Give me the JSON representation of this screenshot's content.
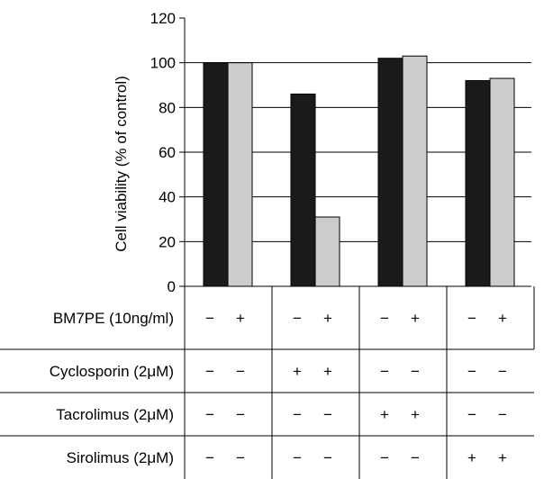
{
  "chart_data": {
    "type": "bar",
    "ylabel": "Cell viability (% of control)",
    "ylim": [
      0,
      120
    ],
    "yticks": [
      0,
      20,
      40,
      60,
      80,
      100,
      120
    ],
    "grid": true,
    "series_colors": [
      "#1a1a1a",
      "#cccccc"
    ],
    "groups": [
      {
        "bars": [
          100,
          100
        ]
      },
      {
        "bars": [
          86,
          31
        ]
      },
      {
        "bars": [
          102,
          103
        ]
      },
      {
        "bars": [
          92,
          93
        ]
      }
    ],
    "treatment_rows": [
      {
        "label": "BM7PE (10ng/ml)",
        "signs": [
          [
            "−",
            "+"
          ],
          [
            "−",
            "+"
          ],
          [
            "−",
            "+"
          ],
          [
            "−",
            "+"
          ]
        ]
      },
      {
        "label": "Cyclosporin (2μM)",
        "signs": [
          [
            "−",
            "−"
          ],
          [
            "+",
            "+"
          ],
          [
            "−",
            "−"
          ],
          [
            "−",
            "−"
          ]
        ]
      },
      {
        "label": "Tacrolimus (2μM)",
        "signs": [
          [
            "−",
            "−"
          ],
          [
            "−",
            "−"
          ],
          [
            "+",
            "+"
          ],
          [
            "−",
            "−"
          ]
        ]
      },
      {
        "label": "Sirolimus (2μM)",
        "signs": [
          [
            "−",
            "−"
          ],
          [
            "−",
            "−"
          ],
          [
            "−",
            "−"
          ],
          [
            "+",
            "+"
          ]
        ]
      }
    ]
  }
}
